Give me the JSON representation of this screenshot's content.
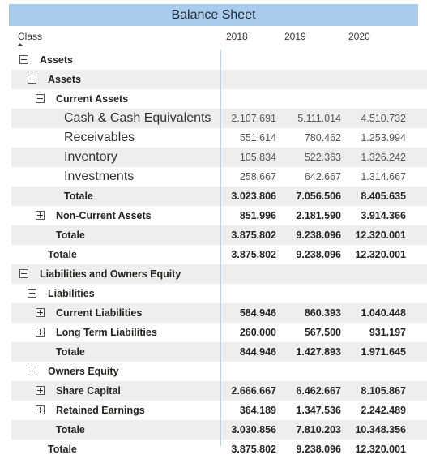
{
  "title": "Balance Sheet",
  "columns": {
    "class": "Class",
    "years": [
      "2018",
      "2019",
      "2020"
    ]
  },
  "rows": [
    {
      "label": "Assets",
      "level": 0,
      "toggle": "minus",
      "style": "bold",
      "shade": false,
      "values": [
        "",
        "",
        ""
      ]
    },
    {
      "label": "Assets",
      "level": 1,
      "toggle": "minus",
      "style": "bold",
      "shade": true,
      "values": [
        "",
        "",
        ""
      ]
    },
    {
      "label": "Current Assets",
      "level": 2,
      "toggle": "minus",
      "style": "bold",
      "shade": false,
      "values": [
        "",
        "",
        ""
      ]
    },
    {
      "label": "Cash & Cash Equivalents",
      "level": 3,
      "toggle": "",
      "style": "big",
      "shade": true,
      "values": [
        "2.107.691",
        "5.111.014",
        "4.510.732"
      ]
    },
    {
      "label": "Receivables",
      "level": 3,
      "toggle": "",
      "style": "big",
      "shade": false,
      "values": [
        "551.614",
        "780.462",
        "1.253.994"
      ]
    },
    {
      "label": "Inventory",
      "level": 3,
      "toggle": "",
      "style": "big",
      "shade": true,
      "values": [
        "105.834",
        "522.363",
        "1.326.242"
      ]
    },
    {
      "label": "Investments",
      "level": 3,
      "toggle": "",
      "style": "big",
      "shade": false,
      "values": [
        "258.667",
        "642.667",
        "1.314.667"
      ]
    },
    {
      "label": "Totale",
      "level": 3,
      "toggle": "",
      "style": "bold",
      "shade": true,
      "values": [
        "3.023.806",
        "7.056.506",
        "8.405.635"
      ]
    },
    {
      "label": "Non-Current Assets",
      "level": 2,
      "toggle": "plus",
      "style": "bold",
      "shade": false,
      "values": [
        "851.996",
        "2.181.590",
        "3.914.366"
      ]
    },
    {
      "label": "Totale",
      "level": 2,
      "toggle": "",
      "style": "bold",
      "shade": true,
      "values": [
        "3.875.802",
        "9.238.096",
        "12.320.001"
      ]
    },
    {
      "label": "Totale",
      "level": 1,
      "toggle": "",
      "style": "bold",
      "shade": false,
      "values": [
        "3.875.802",
        "9.238.096",
        "12.320.001"
      ]
    },
    {
      "label": "Liabilities and Owners Equity",
      "level": 0,
      "toggle": "minus",
      "style": "bold",
      "shade": true,
      "values": [
        "",
        "",
        ""
      ]
    },
    {
      "label": "Liabilities",
      "level": 1,
      "toggle": "minus",
      "style": "bold",
      "shade": false,
      "values": [
        "",
        "",
        ""
      ]
    },
    {
      "label": "Current Liabilities",
      "level": 2,
      "toggle": "plus",
      "style": "bold",
      "shade": true,
      "values": [
        "584.946",
        "860.393",
        "1.040.448"
      ]
    },
    {
      "label": "Long Term Liabilities",
      "level": 2,
      "toggle": "plus",
      "style": "bold",
      "shade": false,
      "values": [
        "260.000",
        "567.500",
        "931.197"
      ]
    },
    {
      "label": "Totale",
      "level": 2,
      "toggle": "",
      "style": "bold",
      "shade": true,
      "values": [
        "844.946",
        "1.427.893",
        "1.971.645"
      ]
    },
    {
      "label": "Owners Equity",
      "level": 1,
      "toggle": "minus",
      "style": "bold",
      "shade": false,
      "values": [
        "",
        "",
        ""
      ]
    },
    {
      "label": "Share Capital",
      "level": 2,
      "toggle": "plus",
      "style": "bold",
      "shade": true,
      "values": [
        "2.666.667",
        "6.462.667",
        "8.105.867"
      ]
    },
    {
      "label": "Retained Earnings",
      "level": 2,
      "toggle": "plus",
      "style": "bold",
      "shade": false,
      "values": [
        "364.189",
        "1.347.536",
        "2.242.489"
      ]
    },
    {
      "label": "Totale",
      "level": 2,
      "toggle": "",
      "style": "bold",
      "shade": true,
      "values": [
        "3.030.856",
        "7.810.203",
        "10.348.356"
      ]
    },
    {
      "label": "Totale",
      "level": 1,
      "toggle": "",
      "style": "bold",
      "shade": false,
      "values": [
        "3.875.802",
        "9.238.096",
        "12.320.001"
      ]
    }
  ]
}
